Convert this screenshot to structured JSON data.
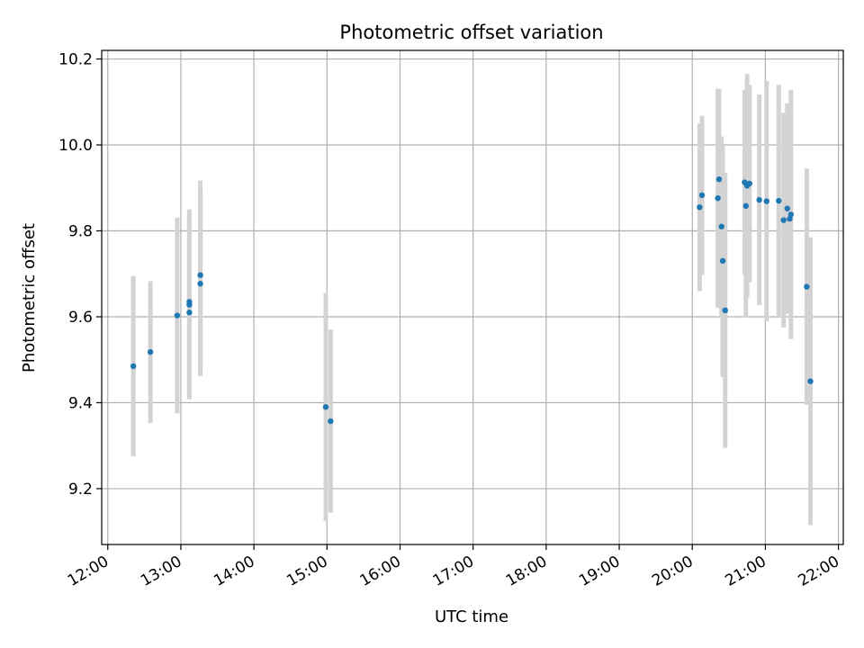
{
  "chart_data": {
    "type": "scatter",
    "title": "Photometric offset variation",
    "xlabel": "UTC time",
    "ylabel": "Photometric offset",
    "grid": true,
    "xlim": [
      "11:55",
      "22:04"
    ],
    "ylim": [
      9.07,
      10.22
    ],
    "x_ticks": [
      "12:00",
      "13:00",
      "14:00",
      "15:00",
      "16:00",
      "17:00",
      "18:00",
      "19:00",
      "20:00",
      "21:00",
      "22:00"
    ],
    "y_ticks": [
      "9.2",
      "9.4",
      "9.6",
      "9.8",
      "10.0",
      "10.2"
    ],
    "colors": {
      "point": "#1f77b4",
      "errorbar": "#d3d3d3",
      "grid": "#b0b0b0"
    },
    "series": [
      {
        "points": [
          {
            "x": "12:21",
            "y": 9.485,
            "err": 0.21
          },
          {
            "x": "12:35",
            "y": 9.518,
            "err": 0.165
          },
          {
            "x": "12:57",
            "y": 9.603,
            "err": 0.228
          },
          {
            "x": "13:07",
            "y": 9.61,
            "err": 0.2
          },
          {
            "x": "13:07",
            "y": 9.628,
            "err": 0.22
          },
          {
            "x": "13:07",
            "y": 9.635,
            "err": 0.215
          },
          {
            "x": "13:16",
            "y": 9.677,
            "err": 0.215
          },
          {
            "x": "13:16",
            "y": 9.697,
            "err": 0.22
          },
          {
            "x": "14:59",
            "y": 9.39,
            "err": 0.265
          },
          {
            "x": "15:03",
            "y": 9.357,
            "err": 0.213
          },
          {
            "x": "20:06",
            "y": 9.855,
            "err": 0.195
          },
          {
            "x": "20:08",
            "y": 9.883,
            "err": 0.185
          },
          {
            "x": "20:21",
            "y": 9.876,
            "err": 0.255
          },
          {
            "x": "20:22",
            "y": 9.92,
            "err": 0.21
          },
          {
            "x": "20:24",
            "y": 9.81,
            "err": 0.21
          },
          {
            "x": "20:25",
            "y": 9.73,
            "err": 0.27
          },
          {
            "x": "20:27",
            "y": 9.615,
            "err": 0.32
          },
          {
            "x": "20:43",
            "y": 9.913,
            "err": 0.215
          },
          {
            "x": "20:44",
            "y": 9.858,
            "err": 0.26
          },
          {
            "x": "20:45",
            "y": 9.905,
            "err": 0.26
          },
          {
            "x": "20:47",
            "y": 9.91,
            "err": 0.23
          },
          {
            "x": "20:55",
            "y": 9.872,
            "err": 0.245
          },
          {
            "x": "21:01",
            "y": 9.869,
            "err": 0.28
          },
          {
            "x": "21:11",
            "y": 9.87,
            "err": 0.27
          },
          {
            "x": "21:15",
            "y": 9.825,
            "err": 0.25
          },
          {
            "x": "21:18",
            "y": 9.852,
            "err": 0.245
          },
          {
            "x": "21:20",
            "y": 9.828,
            "err": 0.215
          },
          {
            "x": "21:21",
            "y": 9.838,
            "err": 0.29
          },
          {
            "x": "21:34",
            "y": 9.67,
            "err": 0.275
          },
          {
            "x": "21:37",
            "y": 9.45,
            "err": 0.335
          }
        ]
      }
    ]
  }
}
